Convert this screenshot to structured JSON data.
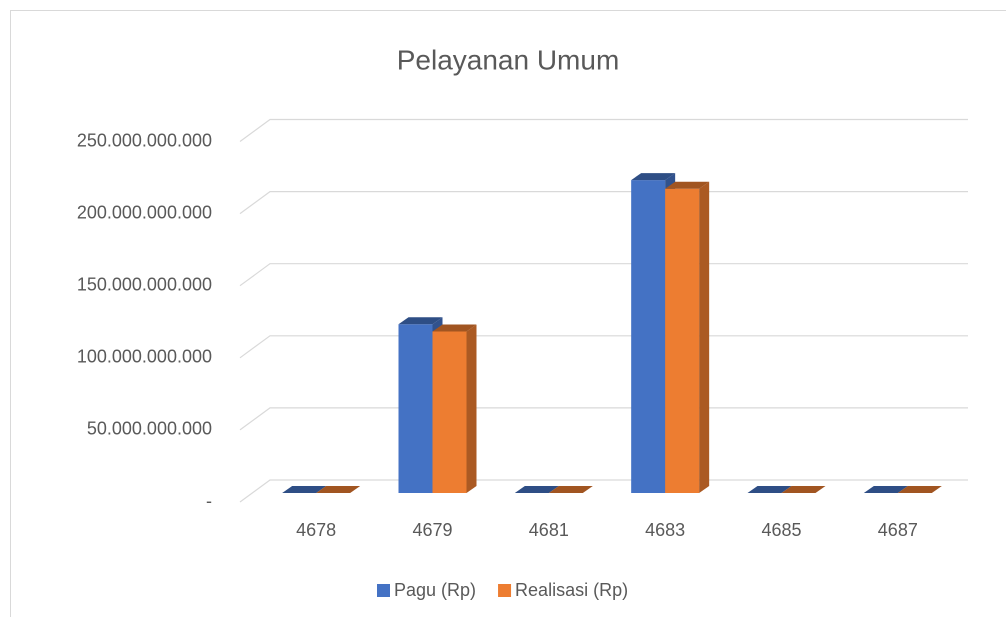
{
  "chart_data": {
    "type": "bar3d",
    "title": "Pelayanan Umum",
    "categories": [
      "4678",
      "4679",
      "4681",
      "4683",
      "4685",
      "4687"
    ],
    "series": [
      {
        "name": "Pagu (Rp)",
        "color": "#4472c4",
        "values": [
          0,
          117000000000,
          0,
          217000000000,
          0,
          0
        ]
      },
      {
        "name": "Realisasi (Rp)",
        "color": "#ed7d31",
        "values": [
          0,
          112000000000,
          0,
          211000000000,
          0,
          0
        ]
      }
    ],
    "ylim": [
      0,
      250000000000
    ],
    "yticks": [
      {
        "value": 0,
        "label": "-"
      },
      {
        "value": 50000000000,
        "label": "50.000.000.000"
      },
      {
        "value": 100000000000,
        "label": "100.000.000.000"
      },
      {
        "value": 150000000000,
        "label": "150.000.000.000"
      },
      {
        "value": 200000000000,
        "label": "200.000.000.000"
      },
      {
        "value": 250000000000,
        "label": "250.000.000.000"
      }
    ],
    "grid": true,
    "legend": "bottom"
  }
}
